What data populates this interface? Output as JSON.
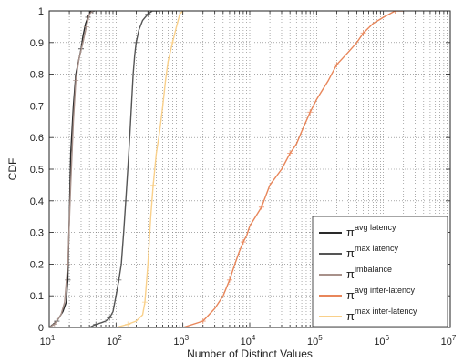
{
  "chart_data": {
    "type": "line",
    "title": "",
    "xlabel": "Number of Distinct Values",
    "ylabel": "CDF",
    "x_scale": "log",
    "xlim": [
      10,
      10000000
    ],
    "ylim": [
      0,
      1
    ],
    "x_ticks": [
      {
        "value": 10,
        "base": "10",
        "exp": "1"
      },
      {
        "value": 100,
        "base": "10",
        "exp": "2"
      },
      {
        "value": 1000,
        "base": "10",
        "exp": "3"
      },
      {
        "value": 10000,
        "base": "10",
        "exp": "4"
      },
      {
        "value": 100000,
        "base": "10",
        "exp": "5"
      },
      {
        "value": 1000000,
        "base": "10",
        "exp": "6"
      },
      {
        "value": 10000000,
        "base": "10",
        "exp": "7"
      }
    ],
    "y_ticks": [
      "0",
      "0.1",
      "0.2",
      "0.3",
      "0.4",
      "0.5",
      "0.6",
      "0.7",
      "0.8",
      "0.9",
      "1"
    ],
    "grid": true,
    "legend_position": "bottom-right",
    "series": [
      {
        "base": "π",
        "sup": "avg latency",
        "color": "#2a2a2a",
        "x": [
          10,
          13,
          16,
          18,
          19,
          20,
          21,
          23,
          25,
          28,
          30,
          32,
          35,
          38,
          40,
          42,
          45,
          48
        ],
        "y": [
          0,
          0.02,
          0.05,
          0.08,
          0.15,
          0.35,
          0.55,
          0.7,
          0.8,
          0.85,
          0.88,
          0.92,
          0.96,
          0.98,
          0.99,
          1,
          1,
          1
        ]
      },
      {
        "base": "π",
        "sup": "max latency",
        "color": "#555555",
        "x": [
          40,
          50,
          60,
          70,
          80,
          90,
          100,
          110,
          120,
          130,
          140,
          150,
          160,
          170,
          180,
          190,
          200,
          220,
          250,
          300,
          350,
          400,
          450
        ],
        "y": [
          0,
          0.01,
          0.015,
          0.02,
          0.03,
          0.05,
          0.1,
          0.15,
          0.2,
          0.3,
          0.4,
          0.5,
          0.6,
          0.7,
          0.8,
          0.86,
          0.9,
          0.94,
          0.97,
          0.99,
          1,
          1,
          1
        ]
      },
      {
        "base": "π",
        "sup": "imbalance",
        "color": "#a8918a",
        "x": [
          10,
          12,
          15,
          17,
          19,
          21,
          23,
          25,
          28,
          32,
          36,
          40,
          45
        ],
        "y": [
          0,
          0.01,
          0.04,
          0.08,
          0.2,
          0.45,
          0.65,
          0.78,
          0.85,
          0.9,
          0.95,
          0.99,
          1
        ]
      },
      {
        "base": "π",
        "sup": "avg inter-latency",
        "color": "#e8865a",
        "x": [
          1000,
          2000,
          3000,
          4000,
          5000,
          6000,
          7000,
          8000,
          9000,
          10000,
          15000,
          20000,
          30000,
          40000,
          50000,
          60000,
          80000,
          100000,
          150000,
          200000,
          300000,
          400000,
          500000,
          700000,
          1000000,
          1500000,
          2000000
        ],
        "y": [
          0,
          0.02,
          0.06,
          0.1,
          0.15,
          0.2,
          0.24,
          0.27,
          0.29,
          0.32,
          0.38,
          0.45,
          0.5,
          0.55,
          0.58,
          0.62,
          0.68,
          0.72,
          0.78,
          0.83,
          0.87,
          0.9,
          0.93,
          0.96,
          0.98,
          1,
          1
        ]
      },
      {
        "base": "π",
        "sup": "max inter-latency",
        "color": "#f9d08a",
        "x": [
          100,
          150,
          200,
          250,
          270,
          300,
          330,
          360,
          400,
          450,
          500,
          550,
          600,
          700,
          800,
          900,
          1000
        ],
        "y": [
          0,
          0.01,
          0.02,
          0.04,
          0.08,
          0.2,
          0.35,
          0.45,
          0.55,
          0.62,
          0.7,
          0.78,
          0.84,
          0.9,
          0.95,
          0.99,
          1
        ]
      }
    ]
  }
}
